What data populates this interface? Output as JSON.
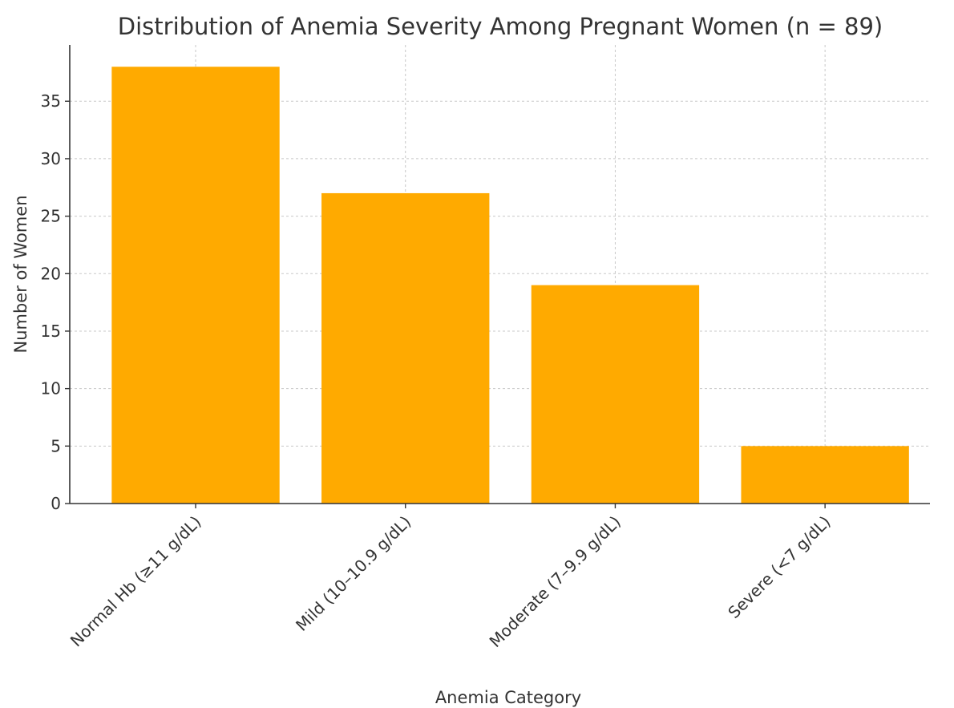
{
  "chart_data": {
    "type": "bar",
    "title": "Distribution of Anemia Severity Among Pregnant Women (n = 89)",
    "xlabel": "Anemia Category",
    "ylabel": "Number of Women",
    "categories": [
      "Normal Hb (≥11 g/dL)",
      "Mild (10–10.9 g/dL)",
      "Moderate (7–9.9 g/dL)",
      "Severe (<7 g/dL)"
    ],
    "values": [
      38,
      27,
      19,
      5
    ],
    "ylim": [
      0,
      39.9
    ],
    "yticks": [
      0,
      5,
      10,
      15,
      20,
      25,
      30,
      35
    ],
    "grid": true,
    "bar_color": "#FFAA00"
  }
}
